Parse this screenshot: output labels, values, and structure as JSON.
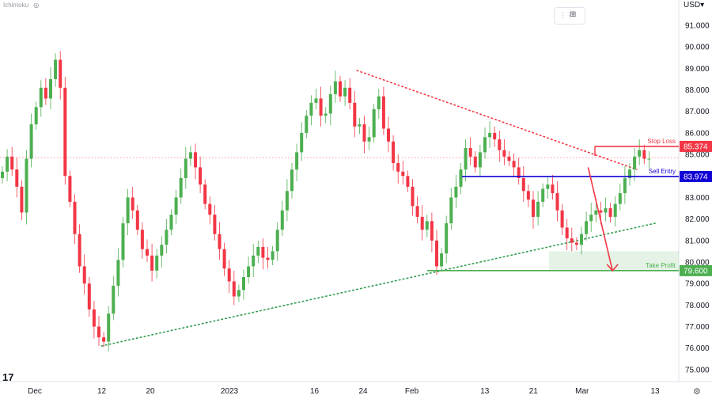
{
  "header": {
    "indicator_label": "Ichimoku",
    "currency_label": "USD"
  },
  "icons": {
    "visibility": "eye-icon",
    "drag": "grip-icon",
    "mode": "object-tree-icon",
    "logo": "tradingview-logo",
    "settings": "gear-icon"
  },
  "chart_data": {
    "type": "candlestick",
    "price_axis": {
      "min": 74.5,
      "max": 92.3,
      "ticks": [
        "91.000",
        "90.000",
        "89.000",
        "88.000",
        "87.000",
        "86.000",
        "85.000",
        "84.000",
        "83.000",
        "82.000",
        "81.000",
        "80.000",
        "79.000",
        "78.000",
        "77.000",
        "76.000",
        "75.000"
      ],
      "tick_values": [
        91,
        90,
        89,
        88,
        87,
        86,
        85,
        84,
        83,
        82,
        81,
        80,
        79,
        78,
        77,
        76,
        75
      ]
    },
    "time_axis": {
      "labels": [
        "Dec",
        "12",
        "20",
        "2023",
        "16",
        "24",
        "Feb",
        "13",
        "21",
        "Mar",
        "13"
      ],
      "dates": [
        "2022-12-01",
        "2022-12-12",
        "2022-12-20",
        "2023-01-02",
        "2023-01-16",
        "2023-01-24",
        "2023-02-01",
        "2023-02-13",
        "2023-02-21",
        "2023-03-01",
        "2023-03-13"
      ]
    },
    "closes": [
      84.2,
      84.9,
      84.3,
      83.5,
      82.3,
      84.8,
      86.4,
      87.2,
      88.1,
      87.6,
      88.5,
      89.4,
      88.1,
      84.0,
      82.8,
      81.3,
      79.8,
      79.0,
      77.8,
      77.0,
      76.5,
      76.3,
      77.6,
      78.9,
      80.1,
      81.8,
      83.0,
      82.4,
      81.5,
      80.6,
      80.3,
      79.6,
      80.3,
      80.8,
      81.5,
      82.2,
      83.0,
      83.9,
      84.8,
      85.1,
      84.4,
      83.6,
      82.7,
      82.2,
      81.3,
      80.6,
      79.7,
      79.1,
      78.4,
      78.7,
      79.3,
      79.8,
      80.3,
      80.7,
      80.2,
      80.1,
      80.5,
      81.5,
      82.4,
      83.3,
      84.3,
      85.1,
      86.0,
      86.8,
      87.4,
      87.6,
      86.8,
      86.9,
      87.8,
      88.4,
      87.7,
      88.1,
      87.4,
      86.3,
      86.4,
      85.6,
      85.8,
      87.1,
      87.7,
      86.2,
      85.6,
      84.6,
      84.2,
      84.0,
      83.5,
      82.6,
      82.1,
      81.5,
      81.9,
      81.0,
      79.8,
      80.4,
      81.8,
      83.0,
      83.5,
      84.3,
      85.3,
      84.9,
      84.4,
      85.1,
      85.8,
      86.0,
      85.7,
      85.2,
      84.9,
      84.7,
      84.4,
      83.9,
      83.3,
      82.9,
      82.1,
      82.8,
      83.4,
      83.6,
      83.2,
      82.4,
      81.6,
      81.1,
      80.9,
      80.8,
      81.3,
      81.9,
      82.2,
      82.4,
      82.3,
      82.5,
      82.1,
      82.7,
      83.2,
      83.9,
      84.3,
      84.9,
      85.2,
      84.8,
      84.8
    ],
    "annotations": [
      {
        "name": "stop-loss",
        "label": "Stop Loss",
        "price": 85.374,
        "price_text": "85.374",
        "color": "#f23645"
      },
      {
        "name": "sell-entry",
        "label": "Sell Entry",
        "price": 83.974,
        "price_text": "83.974",
        "color": "#1000d6"
      },
      {
        "name": "take-profit",
        "label": "Take Profit",
        "price": 79.6,
        "price_text": "79.600",
        "color": "#4caf50"
      }
    ],
    "current_price": 84.85,
    "trendlines": [
      {
        "name": "upper-resistance",
        "style": "dotted",
        "color": "#f23645",
        "from": {
          "date": "2023-01-23",
          "price": 88.9
        },
        "to": {
          "date": "2023-03-10",
          "price": 84.3
        }
      },
      {
        "name": "lower-support",
        "style": "dotted",
        "color": "#2e9e4f",
        "from": {
          "date": "2022-12-12",
          "price": 76.1
        },
        "to": {
          "date": "2023-03-13",
          "price": 81.8
        }
      }
    ],
    "arrows": [
      {
        "name": "projection-arrow",
        "color": "#f23645",
        "points": [
          {
            "date": "2023-03-02",
            "price": 84.4
          },
          {
            "date": "2023-03-06",
            "price": 79.6
          }
        ]
      }
    ],
    "colors": {
      "up": "#26a69a",
      "down": "#ef5350",
      "up_wick": "#4caf50",
      "down_wick": "#f23645"
    }
  }
}
